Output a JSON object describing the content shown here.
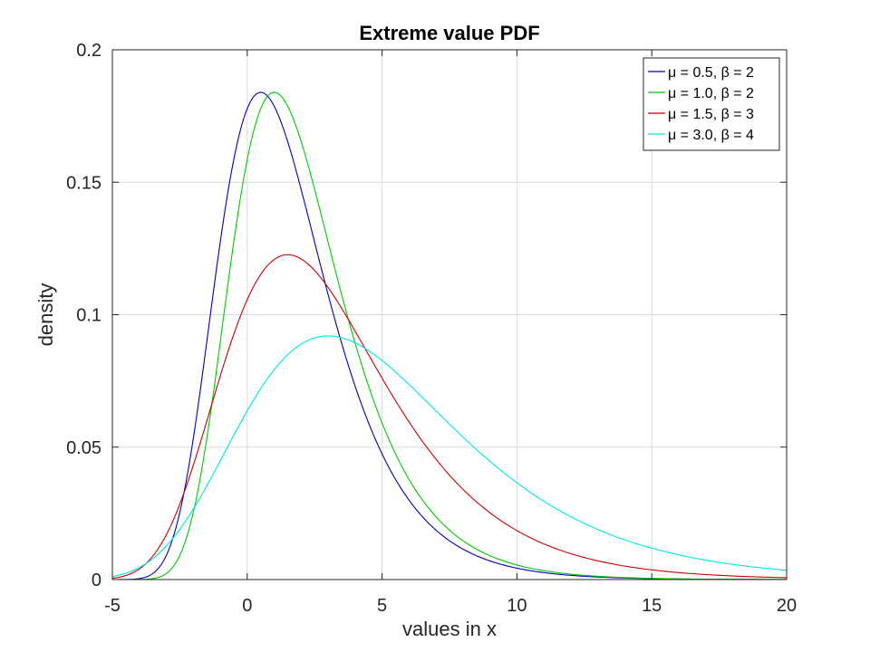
{
  "chart_data": {
    "type": "line",
    "title": "Extreme value PDF",
    "xlabel": "values in x",
    "ylabel": "density",
    "xlim": [
      -5,
      20
    ],
    "ylim": [
      0,
      0.2
    ],
    "xticks": [
      -5,
      0,
      5,
      10,
      15,
      20
    ],
    "xtick_labels": [
      "-5",
      "0",
      "5",
      "10",
      "15",
      "20"
    ],
    "yticks": [
      0,
      0.05,
      0.1,
      0.15,
      0.2
    ],
    "ytick_labels": [
      "0",
      "0.05",
      "0.1",
      "0.15",
      "0.2"
    ],
    "grid": true,
    "legend_position": "top-right",
    "distribution": "Gumbel (maximum) extreme value PDF",
    "series": [
      {
        "name": "μ = 0.5, β = 2",
        "mu": 0.5,
        "beta": 2,
        "color": "#0000b4",
        "x": [
          -5,
          -4,
          -3,
          -2,
          -1,
          0,
          0.5,
          1,
          2,
          3,
          4,
          5,
          6,
          8,
          10,
          12,
          15,
          20
        ],
        "y": [
          0,
          0.0016,
          0.0188,
          0.0722,
          0.1377,
          0.1773,
          0.1839,
          0.1811,
          0.1555,
          0.1179,
          0.0823,
          0.0543,
          0.0346,
          0.0131,
          0.0047,
          0.0017,
          0.0004,
          0
        ]
      },
      {
        "name": "μ = 1.0, β = 2",
        "mu": 1.0,
        "beta": 2,
        "color": "#00c800",
        "x": [
          -5,
          -4,
          -3,
          -2,
          -1,
          0,
          1,
          2,
          3,
          4,
          5,
          6,
          8,
          10,
          12,
          15,
          20
        ],
        "y": [
          0,
          0.0002,
          0.0031,
          0.0306,
          0.0895,
          0.1493,
          0.1839,
          0.1773,
          0.1377,
          0.0999,
          0.0676,
          0.0439,
          0.0172,
          0.0063,
          0.0022,
          0.0005,
          0
        ]
      },
      {
        "name": "μ = 1.5, β = 3",
        "mu": 1.5,
        "beta": 3,
        "color": "#c80000",
        "x": [
          -5,
          -4,
          -3,
          -2,
          -1,
          0,
          1.5,
          3,
          4,
          5,
          6,
          8,
          10,
          12,
          15,
          20
        ],
        "y": [
          0.0013,
          0.0051,
          0.0175,
          0.0419,
          0.0753,
          0.1047,
          0.1226,
          0.1094,
          0.0956,
          0.08,
          0.065,
          0.0404,
          0.024,
          0.0138,
          0.0059,
          0.0014
        ]
      },
      {
        "name": "μ = 3.0, β = 4",
        "mu": 3.0,
        "beta": 4,
        "color": "#00e6e6",
        "x": [
          -5,
          -4,
          -3,
          -2,
          -1,
          0,
          1,
          3,
          5,
          6,
          8,
          10,
          12,
          15,
          20
        ],
        "y": [
          0.0013,
          0.004,
          0.0095,
          0.0186,
          0.0304,
          0.0434,
          0.0559,
          0.092,
          0.0865,
          0.0787,
          0.0623,
          0.0477,
          0.0355,
          0.022,
          0.009
        ]
      }
    ]
  }
}
